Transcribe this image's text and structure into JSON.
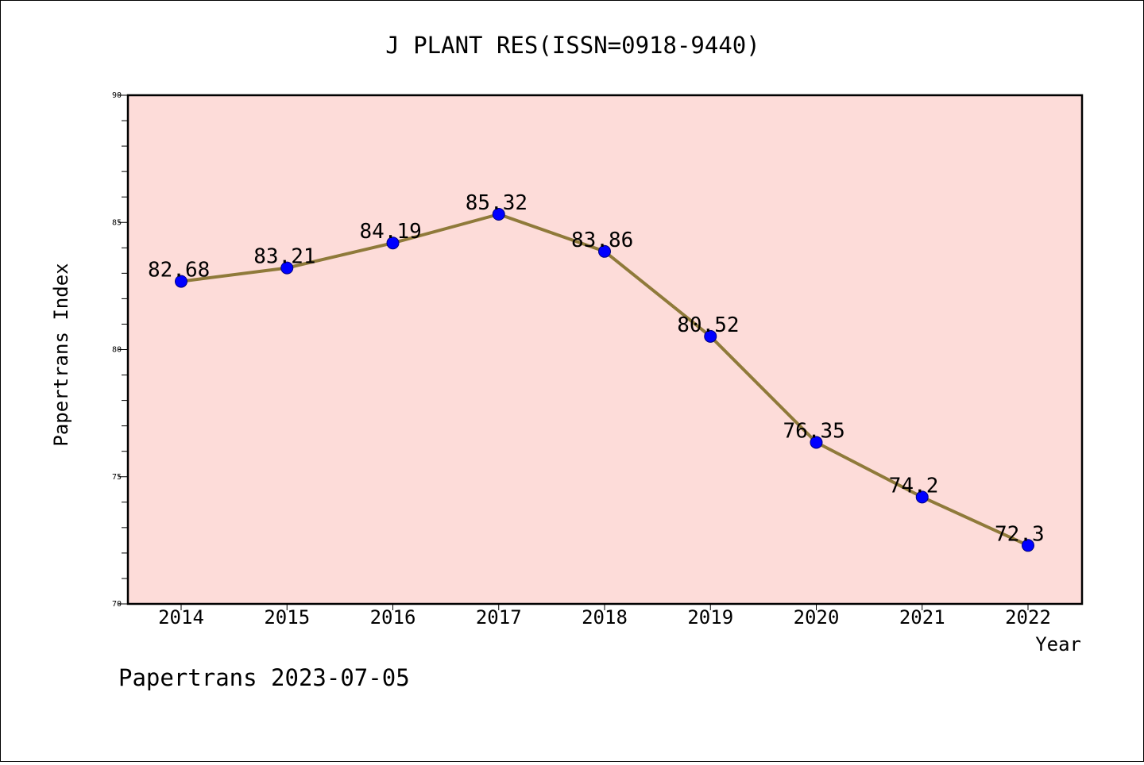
{
  "chart_data": {
    "type": "line",
    "title": "J PLANT RES(ISSN=0918-9440)",
    "xlabel": "Year",
    "ylabel": "Papertrans Index",
    "categories": [
      "2014",
      "2015",
      "2016",
      "2017",
      "2018",
      "2019",
      "2020",
      "2021",
      "2022"
    ],
    "series": [
      {
        "values": [
          82.68,
          83.21,
          84.19,
          85.32,
          83.86,
          80.52,
          76.35,
          74.2,
          72.3
        ],
        "data_labels": [
          "82.68",
          "83.21",
          "84.19",
          "85.32",
          "83.86",
          "80.52",
          "76.35",
          "74.2",
          "72.3"
        ]
      }
    ],
    "ylim": [
      70,
      90
    ],
    "y_ticks": [
      "70",
      "75",
      "80",
      "85",
      "90"
    ],
    "grid": false,
    "legend": "none",
    "colors": {
      "plot_background": "#fddcd9",
      "line": "#8f7a3a",
      "marker": "#0000ff"
    }
  },
  "footer": "Papertrans 2023-07-05"
}
